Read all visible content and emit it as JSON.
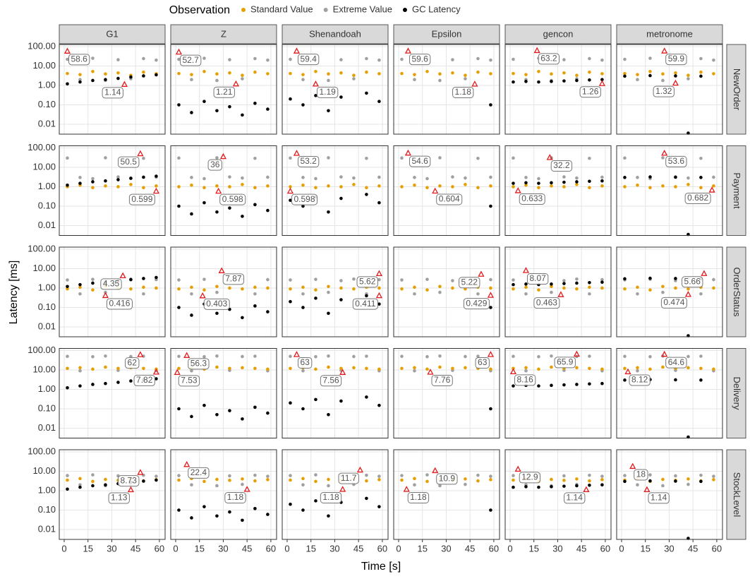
{
  "chart_data": {
    "type": "scatter",
    "legend_title": "Observation",
    "series": [
      {
        "name": "Standard Value",
        "color": "#E69F00"
      },
      {
        "name": "Extreme Value",
        "color": "#A0A0A0"
      },
      {
        "name": "GC Latency",
        "color": "#000000"
      }
    ],
    "marker_color": "#E41A1C",
    "xlabel": "Time [s]",
    "ylabel": "Latency [ms]",
    "log_y": true,
    "grid": true,
    "xlim": [
      -3.1,
      63.6
    ],
    "xticks": [
      0,
      15,
      30,
      45,
      60
    ],
    "ylim": [
      0.0031,
      128
    ],
    "yticks": [
      {
        "value": 100,
        "label": "100.00"
      },
      {
        "value": 10,
        "label": "10.00"
      },
      {
        "value": 1,
        "label": "1.00"
      },
      {
        "value": 0.1,
        "label": "0.10"
      },
      {
        "value": 0.01,
        "label": "0.01"
      }
    ],
    "x": [
      2,
      10,
      18,
      26,
      34,
      42,
      50,
      58
    ],
    "columns": [
      {
        "name": "G1",
        "gc": [
          1.2,
          1.5,
          1.8,
          2.0,
          2.3,
          2.7,
          3.1,
          3.5
        ]
      },
      {
        "name": "Z",
        "gc": [
          0.1,
          0.04,
          0.15,
          0.05,
          0.08,
          0.03,
          0.12,
          0.06
        ]
      },
      {
        "name": "Shenandoah",
        "gc": [
          0.2,
          0.1,
          0.3,
          0.05,
          0.25,
          null,
          0.4,
          0.15
        ]
      },
      {
        "name": "Epsilon",
        "gc": [
          null,
          null,
          null,
          null,
          null,
          null,
          null,
          0.1
        ]
      },
      {
        "name": "gencon",
        "gc": [
          1.5,
          1.6,
          1.5,
          1.6,
          1.7,
          1.8,
          1.9,
          2.0
        ]
      },
      {
        "name": "metronome",
        "gc": [
          3.0,
          null,
          3.2,
          null,
          3.1,
          0.0035,
          3.0,
          null
        ]
      }
    ],
    "rows": [
      {
        "name": "NewOrder",
        "standard": [
          4.1,
          3.6,
          5.2,
          3.9,
          4.4,
          3.3,
          4.8,
          4.0
        ],
        "extreme": [
          22,
          2.0,
          25,
          1.8,
          21,
          2.2,
          24,
          20
        ]
      },
      {
        "name": "Payment",
        "standard": [
          1.0,
          1.2,
          0.9,
          1.1,
          1.0,
          1.3,
          0.9,
          1.1
        ],
        "extreme": [
          30,
          3.0,
          2.6,
          31,
          3.2,
          2.8,
          29,
          3.1
        ]
      },
      {
        "name": "OrderStatus",
        "standard": [
          0.9,
          1.1,
          0.8,
          1.2,
          1.0,
          0.9,
          1.1,
          1.0
        ],
        "extreme": [
          2.6,
          0.5,
          2.8,
          0.6,
          2.4,
          2.9,
          0.5,
          2.7
        ]
      },
      {
        "name": "Delivery",
        "standard": [
          12,
          13,
          11,
          14,
          12,
          13,
          12,
          11
        ],
        "extreme": [
          50,
          9,
          48,
          52,
          9.5,
          49,
          51,
          9
        ]
      },
      {
        "name": "StockLevel",
        "standard": [
          3.5,
          4.2,
          3.0,
          3.8,
          3.4,
          4.0,
          3.2,
          3.7
        ],
        "extreme": [
          6,
          2,
          6.5,
          1.8,
          5.8,
          2.1,
          6.2,
          5.5
        ]
      }
    ],
    "annotations": [
      [
        {
          "max": {
            "x": 2,
            "y": 58.6
          },
          "min": {
            "x": 38,
            "y": 1.14
          }
        },
        {
          "max": {
            "x": 2,
            "y": 52.7
          },
          "min": {
            "x": 38,
            "y": 1.21
          }
        },
        {
          "max": {
            "x": 6,
            "y": 59.4
          },
          "min": {
            "x": 18,
            "y": 1.19
          }
        },
        {
          "max": {
            "x": 6,
            "y": 59.6
          },
          "min": {
            "x": 48,
            "y": 1.18
          }
        },
        {
          "max": {
            "x": 17,
            "y": 63.2
          },
          "min": {
            "x": 58,
            "y": 1.26
          }
        },
        {
          "max": {
            "x": 27,
            "y": 59.9
          },
          "min": {
            "x": 34,
            "y": 1.32
          }
        }
      ],
      [
        {
          "max": {
            "x": 48,
            "y": 50.5
          },
          "min": {
            "x": 58,
            "y": 0.599
          }
        },
        {
          "max": {
            "x": 30,
            "y": 36
          },
          "min": {
            "x": 27,
            "y": 0.598
          }
        },
        {
          "max": {
            "x": 6,
            "y": 53.2
          },
          "min": {
            "x": 2,
            "y": 0.598
          }
        },
        {
          "max": {
            "x": 6,
            "y": 54.6
          },
          "min": {
            "x": 23,
            "y": 0.604
          }
        },
        {
          "max": {
            "x": 25,
            "y": 32.2
          },
          "min": {
            "x": 5,
            "y": 0.633
          }
        },
        {
          "max": {
            "x": 27,
            "y": 53.6
          },
          "min": {
            "x": 57,
            "y": 0.682
          }
        }
      ],
      [
        {
          "max": {
            "x": 37,
            "y": 4.35
          },
          "min": {
            "x": 26,
            "y": 0.416
          }
        },
        {
          "max": {
            "x": 29,
            "y": 7.87
          },
          "min": {
            "x": 17,
            "y": 0.403
          }
        },
        {
          "max": {
            "x": 58,
            "y": 5.62
          },
          "min": {
            "x": 58,
            "y": 0.411
          }
        },
        {
          "max": {
            "x": 52,
            "y": 5.22
          },
          "min": {
            "x": 58,
            "y": 0.429
          }
        },
        {
          "max": {
            "x": 10,
            "y": 8.07
          },
          "min": {
            "x": 32,
            "y": 0.463
          }
        },
        {
          "max": {
            "x": 52,
            "y": 5.66
          },
          "min": {
            "x": 42,
            "y": 0.474
          }
        }
      ],
      [
        {
          "max": {
            "x": 48,
            "y": 62
          },
          "min": {
            "x": 58,
            "y": 7.82
          }
        },
        {
          "max": {
            "x": 7,
            "y": 56.3
          },
          "min": {
            "x": 1,
            "y": 7.53
          }
        },
        {
          "max": {
            "x": 6,
            "y": 63
          },
          "min": {
            "x": 35,
            "y": 7.56
          }
        },
        {
          "max": {
            "x": 58,
            "y": 63
          },
          "min": {
            "x": 20,
            "y": 7.76
          }
        },
        {
          "max": {
            "x": 42,
            "y": 65.9
          },
          "min": {
            "x": 2,
            "y": 8.16
          }
        },
        {
          "max": {
            "x": 27,
            "y": 64.6
          },
          "min": {
            "x": 4,
            "y": 8.12
          }
        }
      ],
      [
        {
          "max": {
            "x": 48,
            "y": 8.73
          },
          "min": {
            "x": 42,
            "y": 1.13
          }
        },
        {
          "max": {
            "x": 7,
            "y": 22.4
          },
          "min": {
            "x": 45,
            "y": 1.18
          }
        },
        {
          "max": {
            "x": 46,
            "y": 11.7
          },
          "min": {
            "x": 35,
            "y": 1.18
          }
        },
        {
          "max": {
            "x": 23,
            "y": 10.9
          },
          "min": {
            "x": 5,
            "y": 1.18
          }
        },
        {
          "max": {
            "x": 5,
            "y": 12.9
          },
          "min": {
            "x": 48,
            "y": 1.14
          }
        },
        {
          "max": {
            "x": 7,
            "y": 18
          },
          "min": {
            "x": 16,
            "y": 1.14
          }
        }
      ]
    ]
  }
}
